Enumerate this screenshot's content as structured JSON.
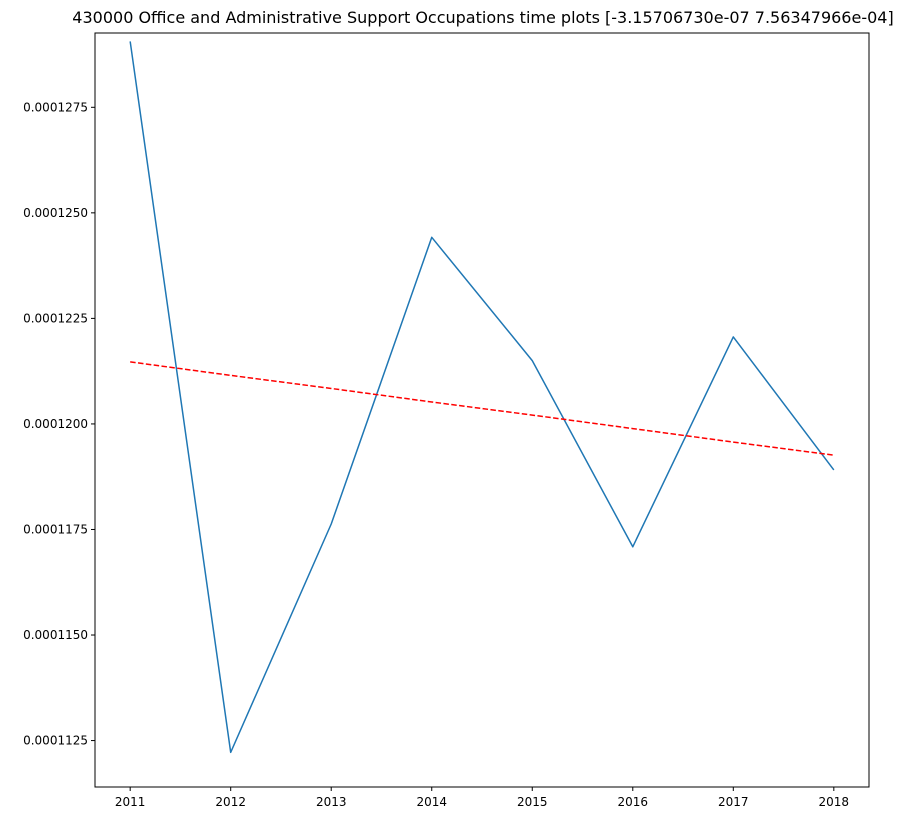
{
  "chart_data": {
    "type": "line",
    "title": "430000 Office and Administrative Support Occupations time plots [-3.15706730e-07  7.56347966e-04]",
    "xlabel": "",
    "ylabel": "",
    "x": [
      2011,
      2012,
      2013,
      2014,
      2015,
      2016,
      2017,
      2018
    ],
    "xlim": [
      2010.65,
      2018.35
    ],
    "ylim": [
      0.0001114,
      0.00012926
    ],
    "yticks": [
      0.0001125,
      0.000115,
      0.0001175,
      0.00012,
      0.0001225,
      0.000125,
      0.0001275
    ],
    "ytick_labels": [
      "0.0001125",
      "0.0001150",
      "0.0001175",
      "0.0001200",
      "0.0001225",
      "0.0001250",
      "0.0001275"
    ],
    "xtick_labels": [
      "2011",
      "2012",
      "2013",
      "2014",
      "2015",
      "2016",
      "2017",
      "2018"
    ],
    "grid": false,
    "series": [
      {
        "style": "solid",
        "color": "#1f77b4",
        "values": [
          0.00012906,
          0.00011222,
          0.00011763,
          0.00012442,
          0.0001215,
          0.00011709,
          0.00012206,
          0.00011891
        ]
      },
      {
        "style": "dashed",
        "color": "#ff0000",
        "values": [
          0.00012147,
          0.00012115,
          0.00012084,
          0.00012052,
          0.00012021,
          0.00011989,
          0.00011957,
          0.00011926
        ]
      }
    ]
  }
}
